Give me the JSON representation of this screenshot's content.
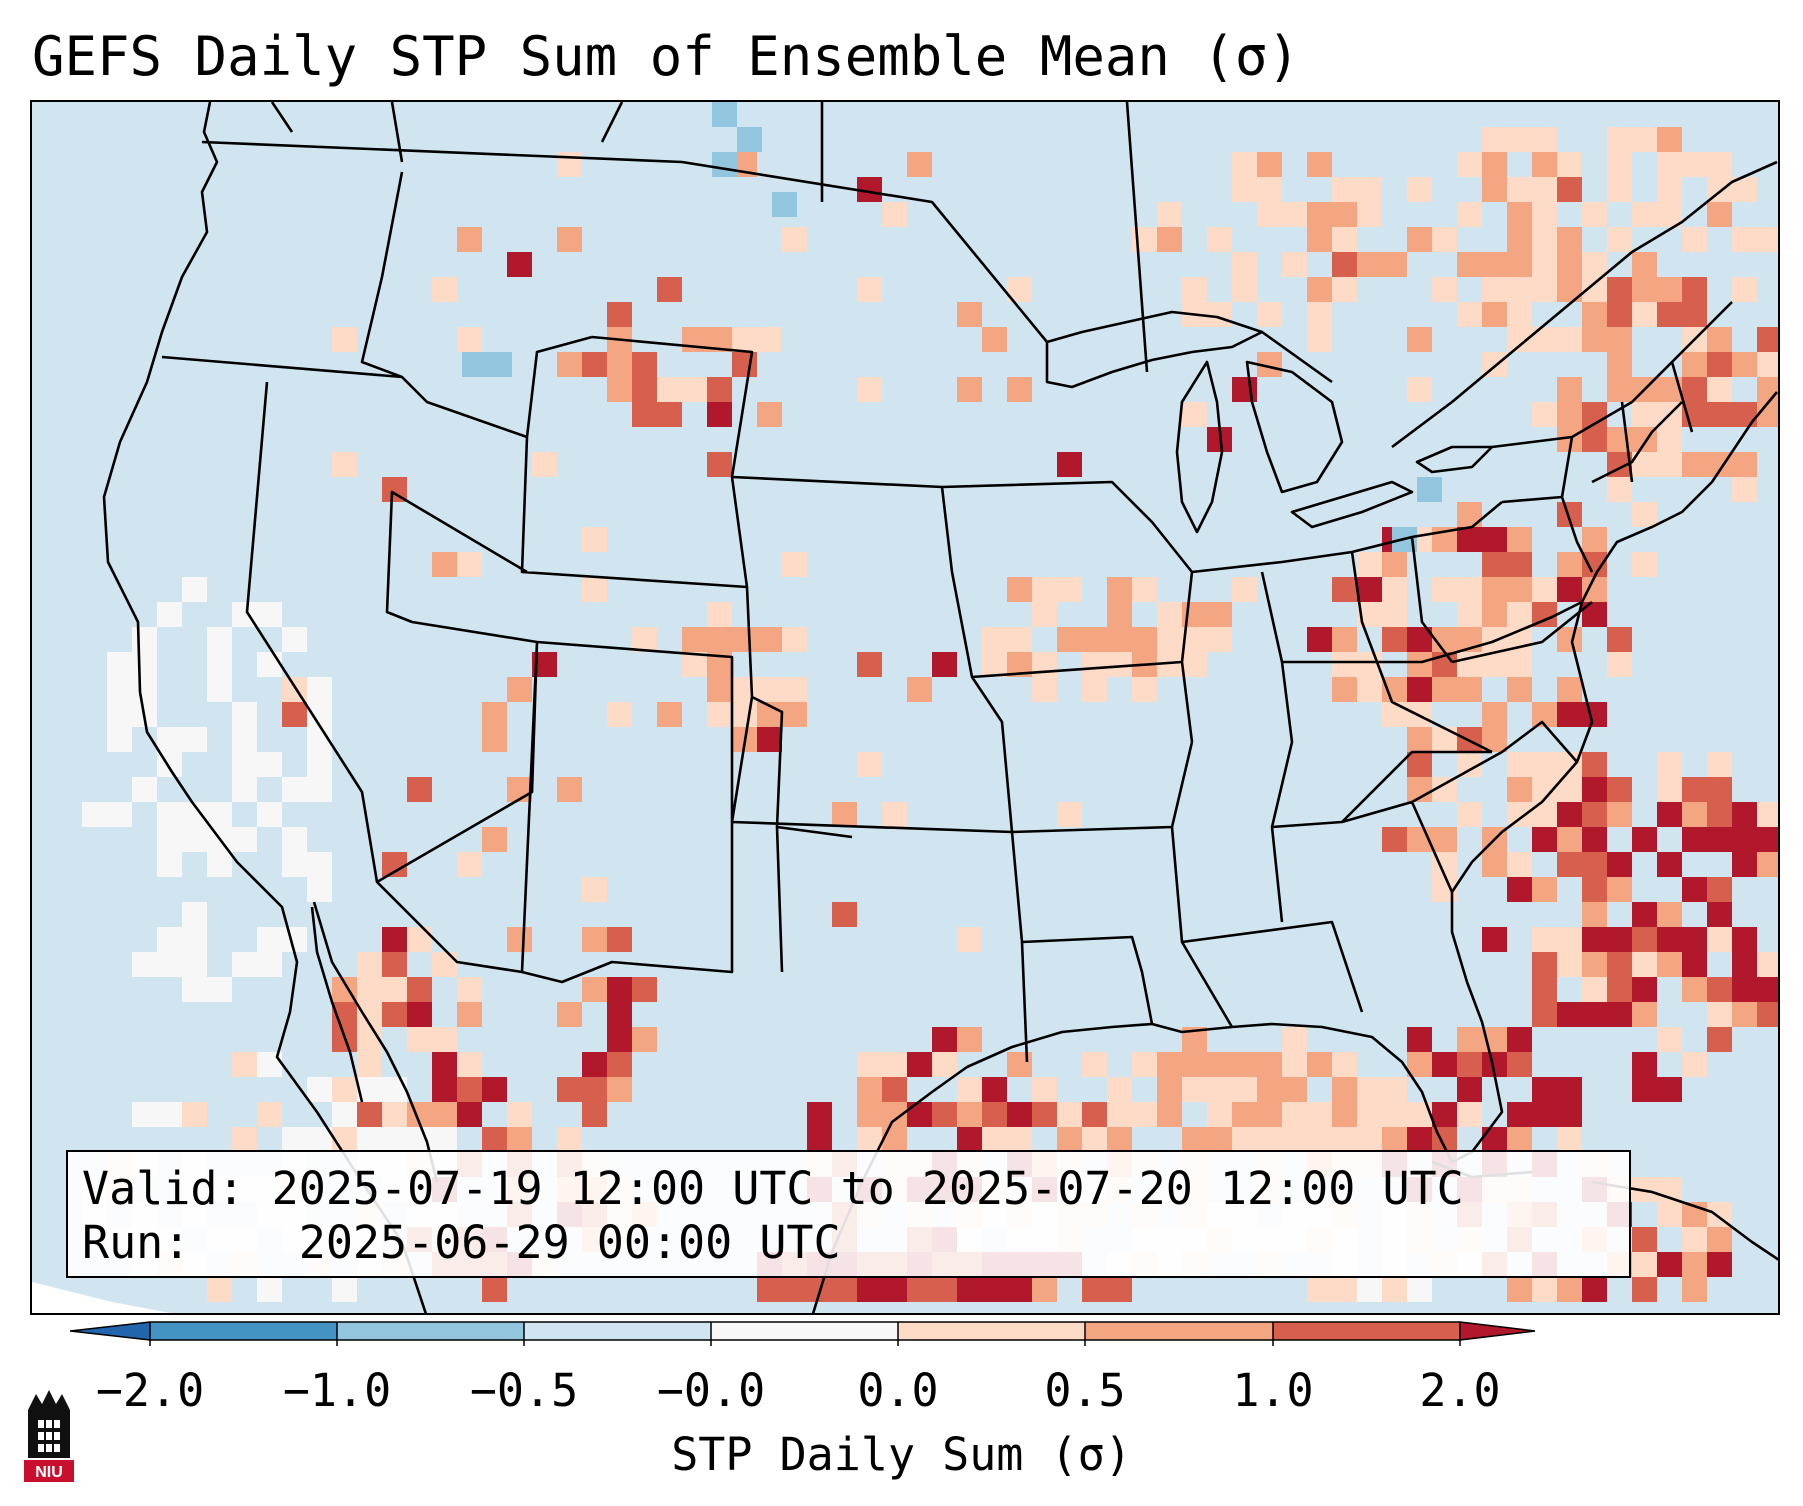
{
  "title": "GEFS Daily STP Sum of Ensemble Mean (σ)",
  "info": {
    "valid_label": "Valid:",
    "valid_value": "2025-07-19 12:00 UTC to 2025-07-20 12:00 UTC",
    "run_label": "Run:",
    "run_value": "2025-06-29 00:00 UTC"
  },
  "colorbar": {
    "label": "STP Daily Sum (σ)",
    "ticks": [
      "−2.0",
      "−1.0",
      "−0.5",
      "−0.0",
      "0.0",
      "0.5",
      "1.0",
      "2.0"
    ],
    "colors": [
      "#2166ac",
      "#4393c3",
      "#92c5de",
      "#d1e5f0",
      "#f7f7f7",
      "#fddbc7",
      "#f4a582",
      "#d6604d",
      "#b2182b"
    ],
    "extend": "both"
  },
  "map": {
    "region": "CONUS, southern Canada, northern Mexico, Gulf of Mexico, western Atlantic",
    "background_color": "#d1e5f0"
  },
  "logo": {
    "text": "NIU",
    "color": "#c8102e"
  }
}
